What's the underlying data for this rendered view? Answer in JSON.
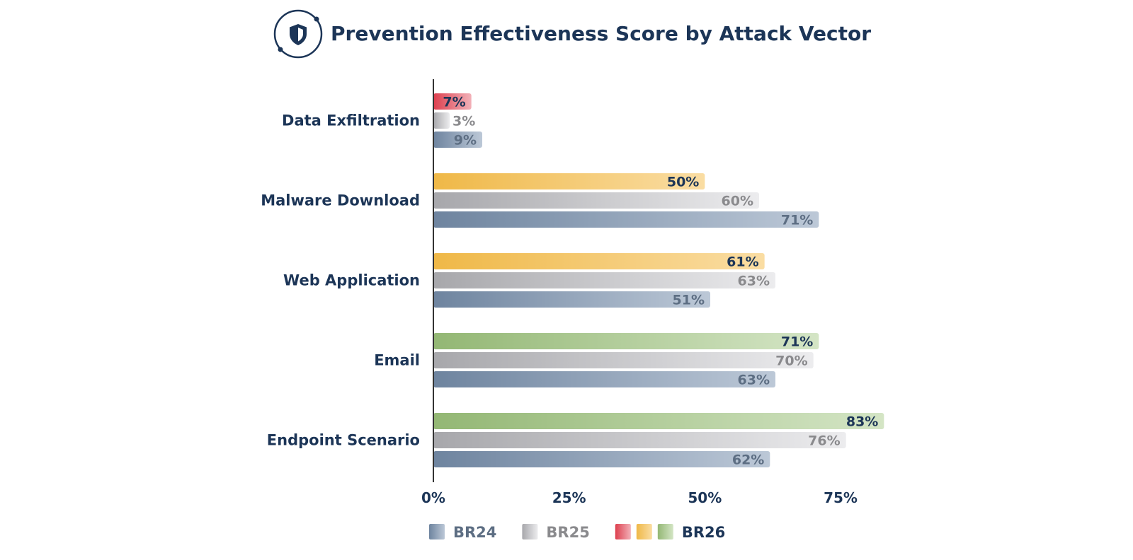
{
  "colors": {
    "title": "#1c3557",
    "axis": "#333333",
    "br24": "#6e849f",
    "br25": "#a7a7ab",
    "br26_red": "#dd3f4e",
    "br26_yellow": "#efb847",
    "br26_green": "#93b774",
    "label_br25": "#8a8a8d",
    "label_br24": "#5d6e83",
    "label_br26": "#1c3557"
  },
  "header_icon": "shield-icon",
  "chart_data": {
    "type": "bar",
    "orientation": "horizontal",
    "title": "Prevention Effectiveness Score by Attack Vector",
    "categories": [
      "Data Exfiltration",
      "Malware Download",
      "Web Application",
      "Email",
      "Endpoint Scenario"
    ],
    "series": [
      {
        "name": "BR26",
        "values": [
          7,
          50,
          61,
          71,
          83
        ],
        "value_labels": [
          "7%",
          "50%",
          "61%",
          "71%",
          "83%"
        ],
        "bar_colors": [
          "red",
          "yellow",
          "yellow",
          "green",
          "green"
        ]
      },
      {
        "name": "BR25",
        "values": [
          3,
          60,
          63,
          70,
          76
        ],
        "value_labels": [
          "3%",
          "60%",
          "63%",
          "70%",
          "76%"
        ]
      },
      {
        "name": "BR24",
        "values": [
          9,
          71,
          51,
          63,
          62
        ],
        "value_labels": [
          "9%",
          "71%",
          "51%",
          "63%",
          "62%"
        ]
      }
    ],
    "xlim": [
      0,
      80
    ],
    "xticks": [
      {
        "value": 0,
        "label": "0%"
      },
      {
        "value": 25,
        "label": "25%"
      },
      {
        "value": 50,
        "label": "50%"
      },
      {
        "value": 75,
        "label": "75%"
      }
    ],
    "grid": false,
    "legend": {
      "placement": "bottom",
      "items": [
        {
          "label": "BR24",
          "swatches": [
            "br24"
          ]
        },
        {
          "label": "BR25",
          "swatches": [
            "br25"
          ]
        },
        {
          "label": "BR26",
          "swatches": [
            "br26_red",
            "br26_yellow",
            "br26_green"
          ]
        }
      ]
    }
  }
}
